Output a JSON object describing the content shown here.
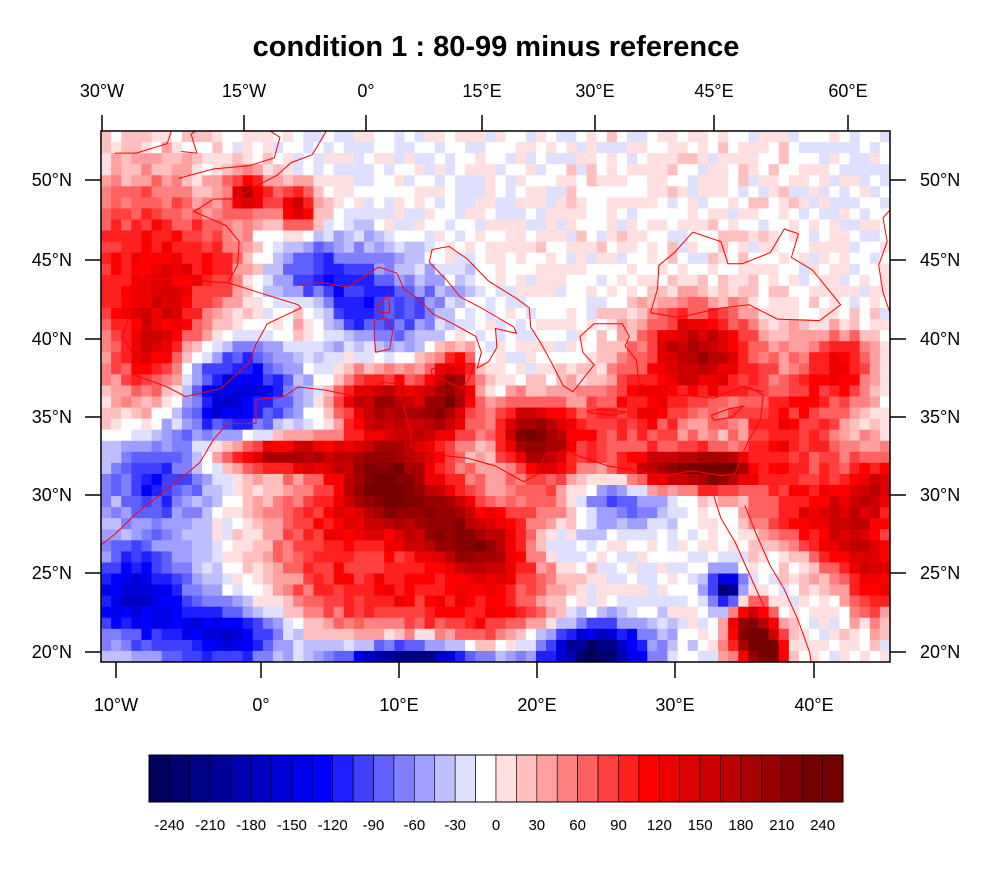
{
  "title": "condition 1 : 80-99 minus reference",
  "map": {
    "top_axis_labels": [
      "30°W",
      "15°W",
      "0°",
      "15°E",
      "30°E",
      "45°E",
      "60°E"
    ],
    "bottom_axis_labels": [
      "10°W",
      "0°",
      "10°E",
      "20°E",
      "30°E",
      "40°E"
    ],
    "left_axis_labels": [
      "50°N",
      "45°N",
      "40°N",
      "35°N",
      "30°N",
      "25°N",
      "20°N"
    ],
    "right_axis_labels": [
      "50°N",
      "45°N",
      "40°N",
      "35°N",
      "30°N",
      "25°N",
      "20°N"
    ],
    "lon_range": [
      -11,
      45
    ],
    "lat_range": [
      19.4,
      53
    ],
    "coastline_color": "#ff0000"
  },
  "colorbar": {
    "labels": [
      "-240",
      "-210",
      "-180",
      "-150",
      "-120",
      "-90",
      "-60",
      "-30",
      "0",
      "30",
      "60",
      "90",
      "120",
      "150",
      "180",
      "210",
      "240"
    ],
    "min": -255,
    "max": 255,
    "step": 15,
    "low_color": "#00005c",
    "mid_color": "#ffffff",
    "high_color": "#740000"
  },
  "anomaly_regions": [
    {
      "name": "North Atlantic west of Iberia",
      "sign": "positive",
      "peak": 110
    },
    {
      "name": "Western Sahara / Atlantic coast",
      "sign": "negative",
      "peak": -110
    },
    {
      "name": "Tropical Atlantic near 20-25N",
      "sign": "negative",
      "peak": -150
    },
    {
      "name": "Algeria / Tunisia coastal strip",
      "sign": "positive",
      "peak": 200
    },
    {
      "name": "Libya interior band",
      "sign": "positive",
      "peak": 170
    },
    {
      "name": "Central Sahara",
      "sign": "positive",
      "peak": 100
    },
    {
      "name": "Eastern Mediterranean / Egypt coast",
      "sign": "negative",
      "peak": -120
    },
    {
      "name": "Southern Egypt / Sudan",
      "sign": "negative",
      "peak": -240
    },
    {
      "name": "Red Sea strip",
      "sign": "positive",
      "peak": 230
    },
    {
      "name": "Northern Red Sea",
      "sign": "negative",
      "peak": -235
    },
    {
      "name": "Italy / Adriatic",
      "sign": "positive",
      "peak": 160
    },
    {
      "name": "Greece / Aegean",
      "sign": "positive",
      "peak": 150
    },
    {
      "name": "Anatolia / Turkey",
      "sign": "positive",
      "peak": 110
    },
    {
      "name": "Southern Turkey / Levant coast",
      "sign": "positive",
      "peak": 180
    },
    {
      "name": "Black Sea",
      "sign": "positive",
      "peak": 90
    },
    {
      "name": "Caucasus / Caspian region",
      "sign": "positive",
      "peak": 130
    },
    {
      "name": "Alps / Central Europe",
      "sign": "negative",
      "peak": -90
    },
    {
      "name": "Ireland / Britain west",
      "sign": "positive",
      "peak": 160
    },
    {
      "name": "Bay of Biscay / Iberia west",
      "sign": "positive",
      "peak": 80
    },
    {
      "name": "Arabian Peninsula north",
      "sign": "positive",
      "peak": 110
    },
    {
      "name": "Eastern Europe plain",
      "sign": "neutral",
      "peak": 10
    }
  ]
}
